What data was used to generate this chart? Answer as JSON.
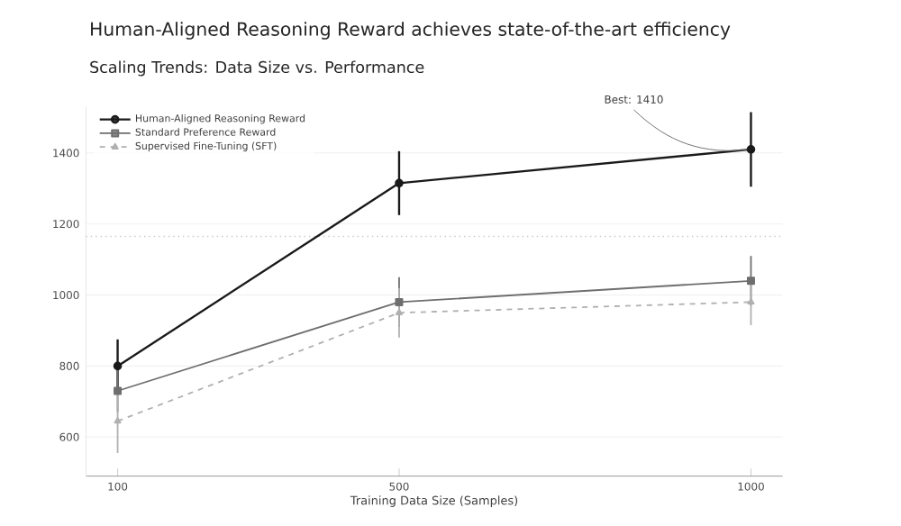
{
  "chart_data": {
    "type": "line",
    "title": "Human-Aligned Reasoning Reward achieves state-of-the-art efficiency",
    "subtitle": "Scaling Trends: Data Size vs. Performance",
    "xlabel": "Training Data Size (Samples)",
    "x": [
      100,
      500,
      1000
    ],
    "series": [
      {
        "name": "Human-Aligned Reasoning Reward",
        "color": "#1a1a1a",
        "marker": "circle",
        "line_style": "solid",
        "values": [
          800,
          1315,
          1410
        ],
        "errors": [
          75,
          90,
          105
        ]
      },
      {
        "name": "Standard Preference Reward",
        "color": "#6e6e6e",
        "marker": "square",
        "line_style": "solid",
        "values": [
          730,
          980,
          1040
        ],
        "errors": [
          60,
          70,
          70
        ]
      },
      {
        "name": "Supervised Fine-Tuning (SFT)",
        "color": "#b0b0b0",
        "marker": "triangle",
        "line_style": "dashed",
        "values": [
          645,
          950,
          980
        ],
        "errors": [
          90,
          70,
          65
        ]
      }
    ],
    "xlim": [
      55,
      1045
    ],
    "ylim": [
      490,
      1530
    ],
    "xticks": [
      100,
      500,
      1000
    ],
    "yticks": [
      600,
      800,
      1000,
      1200,
      1400
    ],
    "ref_lines": [
      {
        "axis": "y",
        "value": 1165,
        "color": "#c8c8c8",
        "line_style": "dotted"
      }
    ],
    "annotations": [
      {
        "text": "Best: 1410",
        "x": 1000,
        "y": 1410
      }
    ],
    "grid": "y",
    "legend": "top left"
  }
}
